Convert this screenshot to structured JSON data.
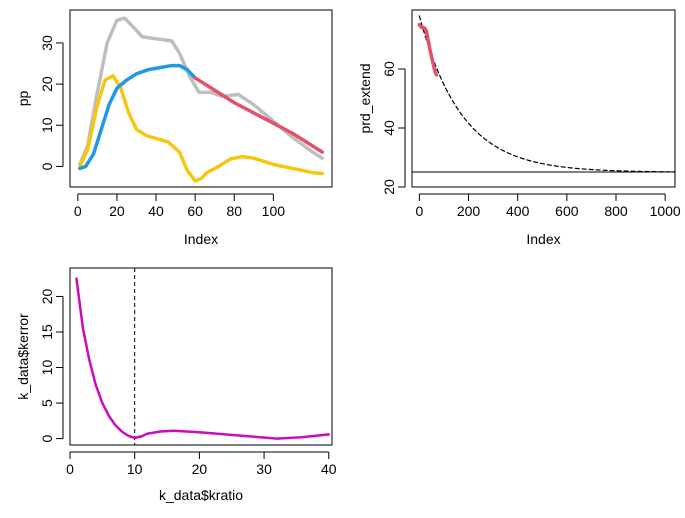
{
  "chart_data": [
    {
      "type": "line",
      "panel": "top-left",
      "xlabel": "Index",
      "ylabel": "pp",
      "xlim": [
        -4,
        130
      ],
      "ylim": [
        -5,
        38
      ],
      "xticks": [
        0,
        20,
        40,
        60,
        80,
        100
      ],
      "xtick_labels": [
        "0",
        "20",
        "40",
        "60",
        "80",
        "100"
      ],
      "yticks": [
        0,
        10,
        20,
        30
      ],
      "ytick_labels": [
        "0",
        "10",
        "20",
        "30"
      ],
      "series": [
        {
          "name": "gray",
          "color": "#BEBEBE",
          "x": [
            1,
            5,
            10,
            15,
            20,
            24,
            28,
            33,
            40,
            48,
            52,
            57,
            62,
            68,
            74,
            82,
            90,
            100,
            110,
            120,
            125
          ],
          "y": [
            0.5,
            5,
            18,
            30,
            35.5,
            36,
            34,
            31.5,
            31,
            30.5,
            27.5,
            22,
            18,
            18,
            17,
            17.5,
            15,
            11,
            7,
            3.5,
            2
          ]
        },
        {
          "name": "yellow",
          "color": "#F5C710",
          "x": [
            1,
            5,
            10,
            14,
            18,
            22,
            26,
            30,
            35,
            40,
            46,
            52,
            56,
            60,
            63,
            66,
            72,
            78,
            84,
            90,
            100,
            110,
            120,
            125
          ],
          "y": [
            0,
            4,
            15,
            21,
            22,
            19,
            13,
            9,
            7.5,
            6.8,
            6,
            3.5,
            -1,
            -3.5,
            -3,
            -1.5,
            0,
            1.8,
            2.4,
            2,
            0.5,
            -0.5,
            -1.5,
            -1.7
          ]
        },
        {
          "name": "blue",
          "color": "#2297E6",
          "x": [
            1,
            4,
            8,
            12,
            16,
            20,
            25,
            30,
            36,
            42,
            48,
            52,
            56,
            60
          ],
          "y": [
            -0.5,
            0,
            3,
            9,
            15,
            19,
            21,
            22.5,
            23.5,
            24,
            24.5,
            24.5,
            23.5,
            21.5
          ]
        },
        {
          "name": "red",
          "color": "#DF536B",
          "x": [
            60,
            70,
            80,
            90,
            100,
            110,
            120,
            125
          ],
          "y": [
            21.5,
            18.5,
            15.5,
            13,
            10.5,
            8,
            5,
            3.5
          ]
        }
      ]
    },
    {
      "type": "line",
      "panel": "top-right",
      "xlabel": "Index",
      "ylabel": "prd_extend",
      "xlim": [
        -30,
        1040
      ],
      "ylim": [
        20,
        80
      ],
      "xticks": [
        0,
        200,
        400,
        600,
        800,
        1000
      ],
      "xtick_labels": [
        "0",
        "200",
        "400",
        "600",
        "800",
        "1000"
      ],
      "yticks": [
        20,
        40,
        60
      ],
      "ytick_labels": [
        "20",
        "40",
        "60"
      ],
      "hline": 25.1,
      "series": [
        {
          "name": "dashed-extension",
          "color": "#000000",
          "style": "dashed",
          "decay": {
            "asymptote": 25,
            "amplitude": 53,
            "rate": 0.0058
          },
          "x_range": [
            0,
            1040
          ]
        },
        {
          "name": "red",
          "color": "#DF536B",
          "x": [
            0,
            10,
            20,
            28,
            35,
            42,
            50,
            58,
            66,
            70
          ],
          "y": [
            75,
            74,
            74,
            73,
            70,
            67,
            64,
            61,
            58.5,
            58
          ]
        }
      ]
    },
    {
      "type": "line",
      "panel": "bottom-left",
      "xlabel": "k_data$kratio",
      "ylabel": "k_data$kerror",
      "xlim": [
        0,
        40.5
      ],
      "ylim": [
        -0.9,
        24
      ],
      "xticks": [
        0,
        10,
        20,
        30,
        40
      ],
      "xtick_labels": [
        "0",
        "10",
        "20",
        "30",
        "40"
      ],
      "yticks": [
        0,
        5,
        10,
        15,
        20
      ],
      "ytick_labels": [
        "0",
        "5",
        "10",
        "15",
        "20"
      ],
      "vline": 10,
      "series": [
        {
          "name": "magenta",
          "color": "#CD0BBC",
          "x": [
            1,
            1.5,
            2,
            3,
            4,
            5,
            6,
            7,
            8,
            9,
            10,
            11,
            12,
            14,
            16,
            18,
            20,
            24,
            28,
            32,
            36,
            40
          ],
          "y": [
            22.5,
            19,
            15.5,
            11,
            7.5,
            5,
            3.2,
            1.9,
            1,
            0.4,
            0.1,
            0.3,
            0.7,
            1,
            1.1,
            1,
            0.9,
            0.6,
            0.3,
            0,
            0.2,
            0.6
          ]
        }
      ]
    }
  ]
}
